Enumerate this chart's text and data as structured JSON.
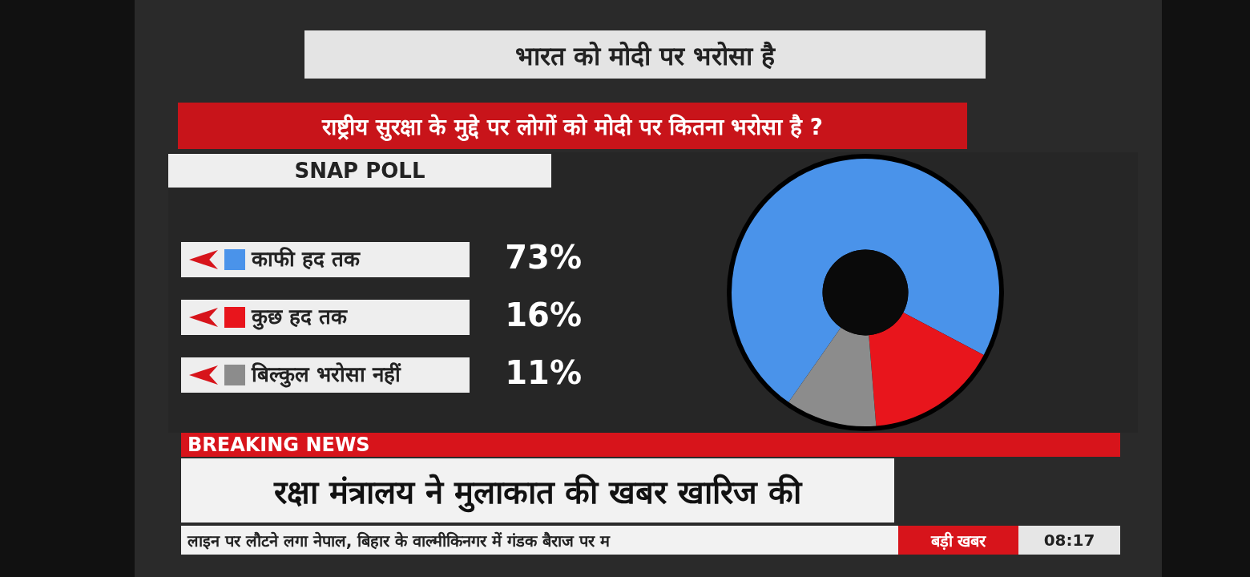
{
  "chart_data": {
    "type": "donut",
    "title": "भारत को मोदी पर भरोसा है",
    "subtitle": "राष्ट्रीय सुरक्षा के मुद्दे पर लोगों को मोदी पर कितना भरोसा है ?",
    "categories": [
      "काफी हद तक",
      "कुछ हद तक",
      "बिल्कुल भरोसा नहीं"
    ],
    "values": [
      73,
      16,
      11
    ],
    "colors": [
      "#4a93ea",
      "#e8151c",
      "#8c8c8c"
    ],
    "value_labels": [
      "73%",
      "16%",
      "11%"
    ],
    "legend": "left",
    "annotations": [
      "SNAP POLL",
      "BREAKING NEWS",
      "रक्षा मंत्रालय ने मुलाकात की खबर खारिज की",
      "लाइन पर लौटने लगा नेपाल, बिहार के वाल्मीकिनगर में गंडक बैराज पर म",
      "बड़ी खबर",
      "08:17"
    ]
  }
}
